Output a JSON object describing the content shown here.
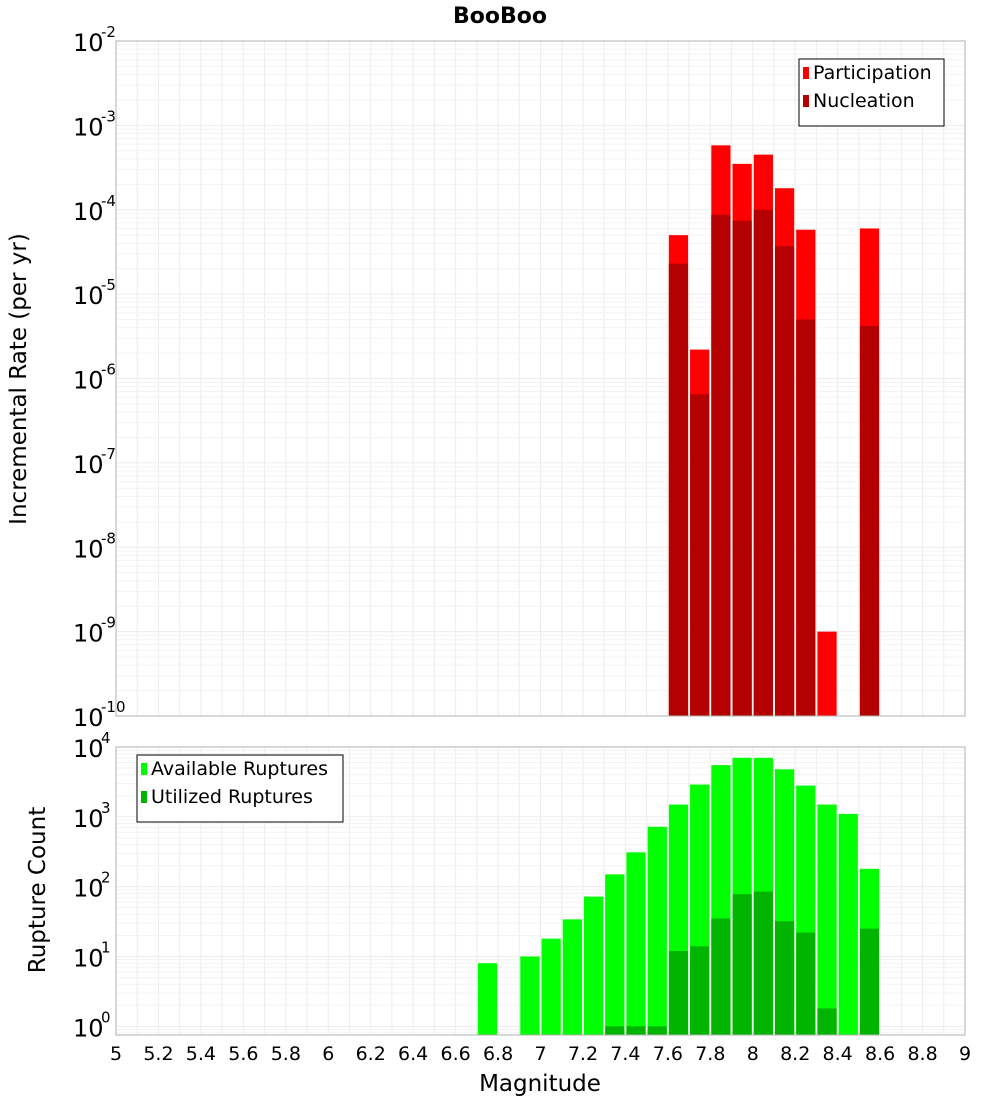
{
  "chart_data": [
    {
      "type": "bar",
      "title": "BooBoo",
      "ylabel": "Incremental Rate (per yr)",
      "xlabel": "",
      "yscale": "log",
      "ylim": [
        1e-10,
        0.01
      ],
      "xlim": [
        5,
        9
      ],
      "legend_position": "top-right",
      "bar_width": 0.1,
      "ytick_exponents": [
        "-10",
        "-9",
        "-8",
        "-7",
        "-6",
        "-5",
        "-4",
        "-3",
        "-2"
      ],
      "ytick_base": "10",
      "x": [
        7.65,
        7.75,
        7.85,
        7.95,
        8.05,
        8.15,
        8.25,
        8.35,
        8.55
      ],
      "series": [
        {
          "name": "Participation",
          "color": "#ff0000",
          "values": [
            5e-05,
            2.2e-06,
            0.00058,
            0.00035,
            0.00045,
            0.00018,
            5.8e-05,
            1e-09,
            6e-05
          ]
        },
        {
          "name": "Nucleation",
          "color": "#b40000",
          "values": [
            2.3e-05,
            6.5e-07,
            8.7e-05,
            7.4e-05,
            0.0001,
            3.7e-05,
            5e-06,
            null,
            4.2e-06
          ]
        }
      ]
    },
    {
      "type": "bar",
      "title": "",
      "ylabel": "Rupture Count",
      "xlabel": "Magnitude",
      "yscale": "log",
      "ylim": [
        0.75,
        10000
      ],
      "xlim": [
        5,
        9
      ],
      "legend_position": "top-left",
      "bar_width": 0.1,
      "ytick_exponents": [
        "0",
        "1",
        "2",
        "3",
        "4"
      ],
      "ytick_base": "10",
      "xticks": [
        "5",
        "5.2",
        "5.4",
        "5.6",
        "5.8",
        "6",
        "6.2",
        "6.4",
        "6.6",
        "6.8",
        "7",
        "7.2",
        "7.4",
        "7.6",
        "7.8",
        "8",
        "8.2",
        "8.4",
        "8.6",
        "8.8",
        "9"
      ],
      "x": [
        6.75,
        6.95,
        7.05,
        7.15,
        7.25,
        7.35,
        7.45,
        7.55,
        7.65,
        7.75,
        7.85,
        7.95,
        8.05,
        8.15,
        8.25,
        8.35,
        8.45,
        8.55
      ],
      "series": [
        {
          "name": "Available Ruptures",
          "color": "#00ff00",
          "values": [
            8,
            10,
            18,
            34,
            72,
            150,
            310,
            720,
            1500,
            2900,
            5500,
            7000,
            7000,
            4800,
            2800,
            1500,
            1100,
            180
          ]
        },
        {
          "name": "Utilized Ruptures",
          "color": "#00b400",
          "values": [
            null,
            null,
            null,
            null,
            null,
            1,
            1,
            1,
            12,
            14,
            35,
            78,
            85,
            32,
            22,
            1.8,
            null,
            25
          ]
        }
      ]
    }
  ]
}
